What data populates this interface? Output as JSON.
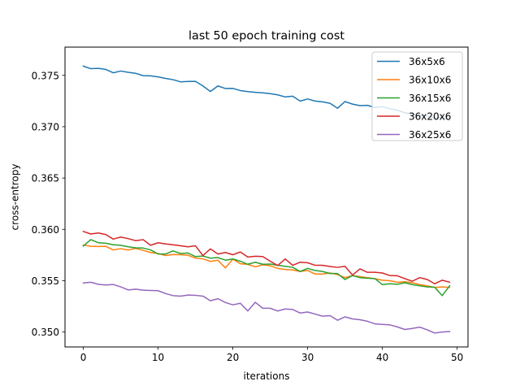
{
  "chart_data": {
    "type": "line",
    "title": "last 50 epoch training cost",
    "xlabel": "iterations",
    "ylabel": "cross-entropy",
    "xlim": [
      -2.45,
      51.45
    ],
    "ylim": [
      0.34855,
      0.37775
    ],
    "xticks": [
      0,
      10,
      20,
      30,
      40,
      50
    ],
    "xtick_labels": [
      "0",
      "10",
      "20",
      "30",
      "40",
      "50"
    ],
    "yticks": [
      0.35,
      0.355,
      0.36,
      0.365,
      0.37,
      0.375
    ],
    "ytick_labels": [
      "0.350",
      "0.355",
      "0.360",
      "0.365",
      "0.370",
      "0.375"
    ],
    "grid": false,
    "legend_position": "top-right",
    "x": [
      0,
      1,
      2,
      3,
      4,
      5,
      6,
      7,
      8,
      9,
      10,
      11,
      12,
      13,
      14,
      15,
      16,
      17,
      18,
      19,
      20,
      21,
      22,
      23,
      24,
      25,
      26,
      27,
      28,
      29,
      30,
      31,
      32,
      33,
      34,
      35,
      36,
      37,
      38,
      39,
      40,
      41,
      42,
      43,
      44,
      45,
      46,
      47,
      48,
      49
    ],
    "series": [
      {
        "name": "36x5x6",
        "color": "#1f77b4",
        "values": [
          0.3759,
          0.37565,
          0.37568,
          0.37558,
          0.37525,
          0.37542,
          0.3753,
          0.3752,
          0.37497,
          0.37495,
          0.37485,
          0.3747,
          0.37458,
          0.37437,
          0.37441,
          0.37442,
          0.37397,
          0.37343,
          0.37397,
          0.37372,
          0.37373,
          0.37352,
          0.37342,
          0.37335,
          0.3733,
          0.37322,
          0.3731,
          0.3729,
          0.37297,
          0.3725,
          0.3727,
          0.3725,
          0.37242,
          0.37228,
          0.3718,
          0.37245,
          0.3722,
          0.37205,
          0.37208,
          0.37187,
          0.37195,
          0.37175,
          0.3716,
          0.37135,
          0.37125,
          0.3711,
          0.37108,
          0.37085,
          0.3709,
          0.37062
        ]
      },
      {
        "name": "36x10x6",
        "color": "#ff7f0e",
        "values": [
          0.35848,
          0.35835,
          0.35833,
          0.35835,
          0.358,
          0.35812,
          0.358,
          0.35815,
          0.35795,
          0.35775,
          0.35765,
          0.35745,
          0.35755,
          0.35753,
          0.35748,
          0.3572,
          0.35713,
          0.35688,
          0.357,
          0.35625,
          0.3571,
          0.35665,
          0.3566,
          0.35635,
          0.35655,
          0.35645,
          0.3562,
          0.3561,
          0.35605,
          0.3559,
          0.356,
          0.35565,
          0.35565,
          0.35575,
          0.3556,
          0.3553,
          0.3555,
          0.3554,
          0.3553,
          0.3552,
          0.35505,
          0.355,
          0.35485,
          0.3549,
          0.3548,
          0.35462,
          0.3545,
          0.35435,
          0.3544,
          0.35435
        ]
      },
      {
        "name": "36x15x6",
        "color": "#2ca02c",
        "values": [
          0.35838,
          0.359,
          0.3587,
          0.35865,
          0.3585,
          0.35845,
          0.3583,
          0.3582,
          0.35818,
          0.358,
          0.3576,
          0.3576,
          0.3579,
          0.35765,
          0.3577,
          0.35735,
          0.3574,
          0.3572,
          0.35725,
          0.357,
          0.35712,
          0.3569,
          0.3566,
          0.3568,
          0.3566,
          0.35662,
          0.3565,
          0.3564,
          0.3563,
          0.3559,
          0.3562,
          0.356,
          0.3559,
          0.3557,
          0.3557,
          0.35512,
          0.3555,
          0.3553,
          0.35525,
          0.3552,
          0.35462,
          0.3547,
          0.35465,
          0.3548,
          0.35462,
          0.3545,
          0.3544,
          0.35437,
          0.35355,
          0.3545
        ]
      },
      {
        "name": "36x20x6",
        "color": "#d62728",
        "values": [
          0.3598,
          0.35955,
          0.35965,
          0.3595,
          0.35905,
          0.35925,
          0.3591,
          0.3589,
          0.359,
          0.35845,
          0.3587,
          0.35858,
          0.3585,
          0.3584,
          0.3583,
          0.3584,
          0.35745,
          0.3581,
          0.3576,
          0.35775,
          0.35753,
          0.3578,
          0.3573,
          0.35738,
          0.35735,
          0.3569,
          0.35648,
          0.35712,
          0.3565,
          0.3568,
          0.35675,
          0.3565,
          0.3565,
          0.35638,
          0.3563,
          0.3564,
          0.35555,
          0.35615,
          0.35582,
          0.35582,
          0.35575,
          0.3555,
          0.35548,
          0.3552,
          0.35495,
          0.3553,
          0.35512,
          0.3547,
          0.35505,
          0.35485
        ]
      },
      {
        "name": "36x25x6",
        "color": "#9467bd",
        "values": [
          0.35478,
          0.35485,
          0.35465,
          0.35458,
          0.35463,
          0.3544,
          0.3541,
          0.35418,
          0.35408,
          0.35405,
          0.35403,
          0.35375,
          0.35355,
          0.3535,
          0.3536,
          0.35358,
          0.3535,
          0.35305,
          0.35325,
          0.35288,
          0.35265,
          0.3528,
          0.35205,
          0.3529,
          0.35232,
          0.35232,
          0.35205,
          0.35225,
          0.3522,
          0.35185,
          0.35195,
          0.35175,
          0.35155,
          0.3516,
          0.35115,
          0.35148,
          0.35128,
          0.3512,
          0.35105,
          0.3508,
          0.35075,
          0.3507,
          0.3505,
          0.35025,
          0.35035,
          0.35048,
          0.35022,
          0.3499,
          0.35,
          0.35005
        ]
      }
    ]
  }
}
